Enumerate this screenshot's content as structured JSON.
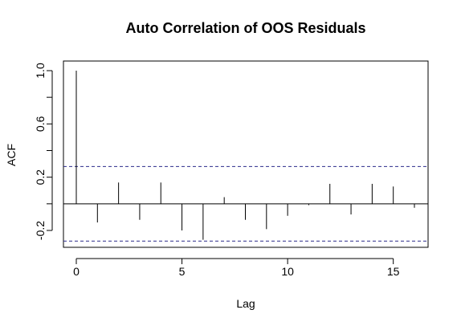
{
  "chart_data": {
    "type": "bar",
    "title": "Auto Correlation of OOS Residuals",
    "xlabel": "Lag",
    "ylabel": "ACF",
    "x": [
      0,
      1,
      2,
      3,
      4,
      5,
      6,
      7,
      8,
      9,
      10,
      11,
      12,
      13,
      14,
      15,
      16
    ],
    "values": [
      1.0,
      -0.14,
      0.16,
      -0.12,
      0.16,
      -0.2,
      -0.27,
      0.05,
      -0.12,
      -0.19,
      -0.09,
      -0.01,
      0.15,
      -0.08,
      0.15,
      0.13,
      -0.03
    ],
    "confidence_bound": 0.28,
    "xlim": [
      0,
      16
    ],
    "ylim": [
      -0.33,
      1.0
    ],
    "x_ticks": [
      0,
      5,
      10,
      15
    ],
    "x_tick_labels": [
      "0",
      "5",
      "10",
      "15"
    ],
    "y_ticks": [
      -0.2,
      0.2,
      0.6,
      1.0
    ],
    "y_tick_labels": [
      "-0.2",
      "0.2",
      "0.6",
      "1.0"
    ],
    "grid": false,
    "colors": {
      "spikes": "#000000",
      "confidence": "#2b2b8a"
    }
  }
}
